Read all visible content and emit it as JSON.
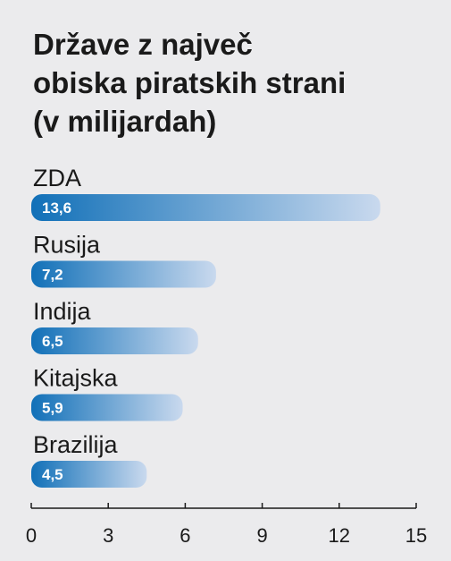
{
  "chart_data": {
    "type": "bar",
    "orientation": "horizontal",
    "title": [
      "Države z največ",
      "obiska piratskih strani",
      "(v milijardah)"
    ],
    "categories": [
      "ZDA",
      "Rusija",
      "Indija",
      "Kitajska",
      "Brazilija"
    ],
    "values": [
      13.6,
      7.2,
      6.5,
      5.9,
      4.5
    ],
    "value_labels": [
      "13,6",
      "7,2",
      "6,5",
      "5,9",
      "4,5"
    ],
    "xlim": [
      0,
      15
    ],
    "xticks": [
      0,
      3,
      6,
      9,
      12,
      15
    ],
    "xtick_labels": [
      "0",
      "3",
      "6",
      "9",
      "12",
      "15"
    ],
    "grid": false,
    "colors": {
      "bar_start": "#1170b8",
      "bar_end": "#c9d9ee",
      "background": "#ebebed",
      "text": "#1a1a1a"
    }
  }
}
